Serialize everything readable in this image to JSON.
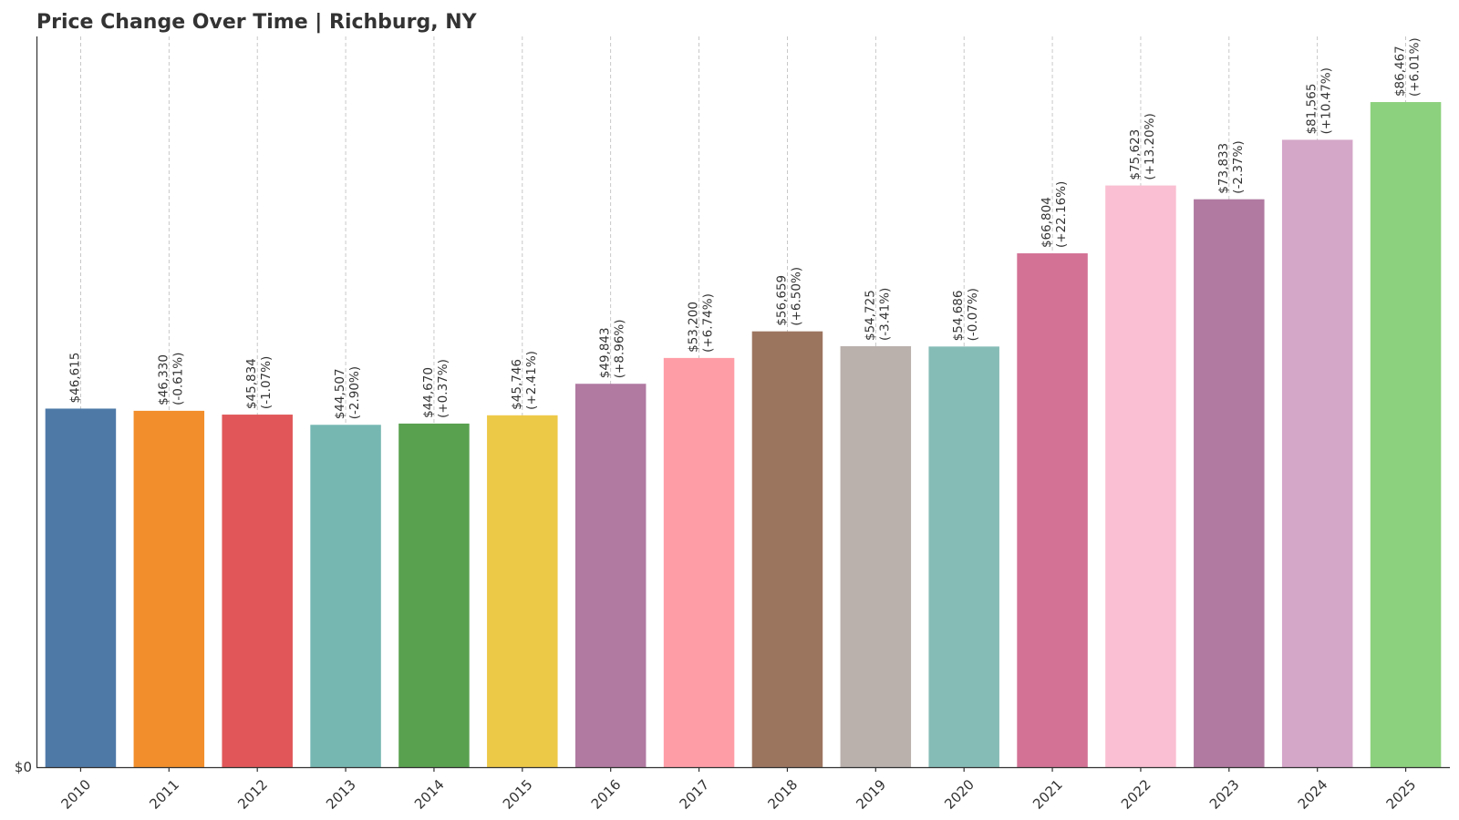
{
  "chart_data": {
    "type": "bar",
    "title": "Price Change Over Time | Richburg, NY",
    "xlabel": "",
    "ylabel": "",
    "ylim": [
      0,
      95000
    ],
    "y_ticks": [
      {
        "value": 0,
        "label": "$0"
      }
    ],
    "grid": "vertical-dashed",
    "categories": [
      "2010",
      "2011",
      "2012",
      "2013",
      "2014",
      "2015",
      "2016",
      "2017",
      "2018",
      "2019",
      "2020",
      "2021",
      "2022",
      "2023",
      "2024",
      "2025"
    ],
    "values": [
      46615,
      46330,
      45834,
      44507,
      44670,
      45746,
      49843,
      53200,
      56659,
      54725,
      54686,
      66804,
      75623,
      73833,
      81565,
      86467
    ],
    "value_labels": [
      "$46,615",
      "$46,330",
      "$45,834",
      "$44,507",
      "$44,670",
      "$45,746",
      "$49,843",
      "$53,200",
      "$56,659",
      "$54,725",
      "$54,686",
      "$66,804",
      "$75,623",
      "$73,833",
      "$81,565",
      "$86,467"
    ],
    "change_labels": [
      "",
      "(-0.61%)",
      "(-1.07%)",
      "(-2.90%)",
      "(+0.37%)",
      "(+2.41%)",
      "(+8.96%)",
      "(+6.74%)",
      "(+6.50%)",
      "(-3.41%)",
      "(-0.07%)",
      "(+22.16%)",
      "(+13.20%)",
      "(-2.37%)",
      "(+10.47%)",
      "(+6.01%)"
    ],
    "colors": [
      "#4e79a7",
      "#f28e2b",
      "#e15759",
      "#76b7b2",
      "#59a14f",
      "#edc948",
      "#b07aa1",
      "#ff9da7",
      "#9c755f",
      "#bab0ac",
      "#86bcb6",
      "#d37295",
      "#fabfd2",
      "#b07aa1",
      "#d4a6c8",
      "#8cd17d"
    ]
  }
}
